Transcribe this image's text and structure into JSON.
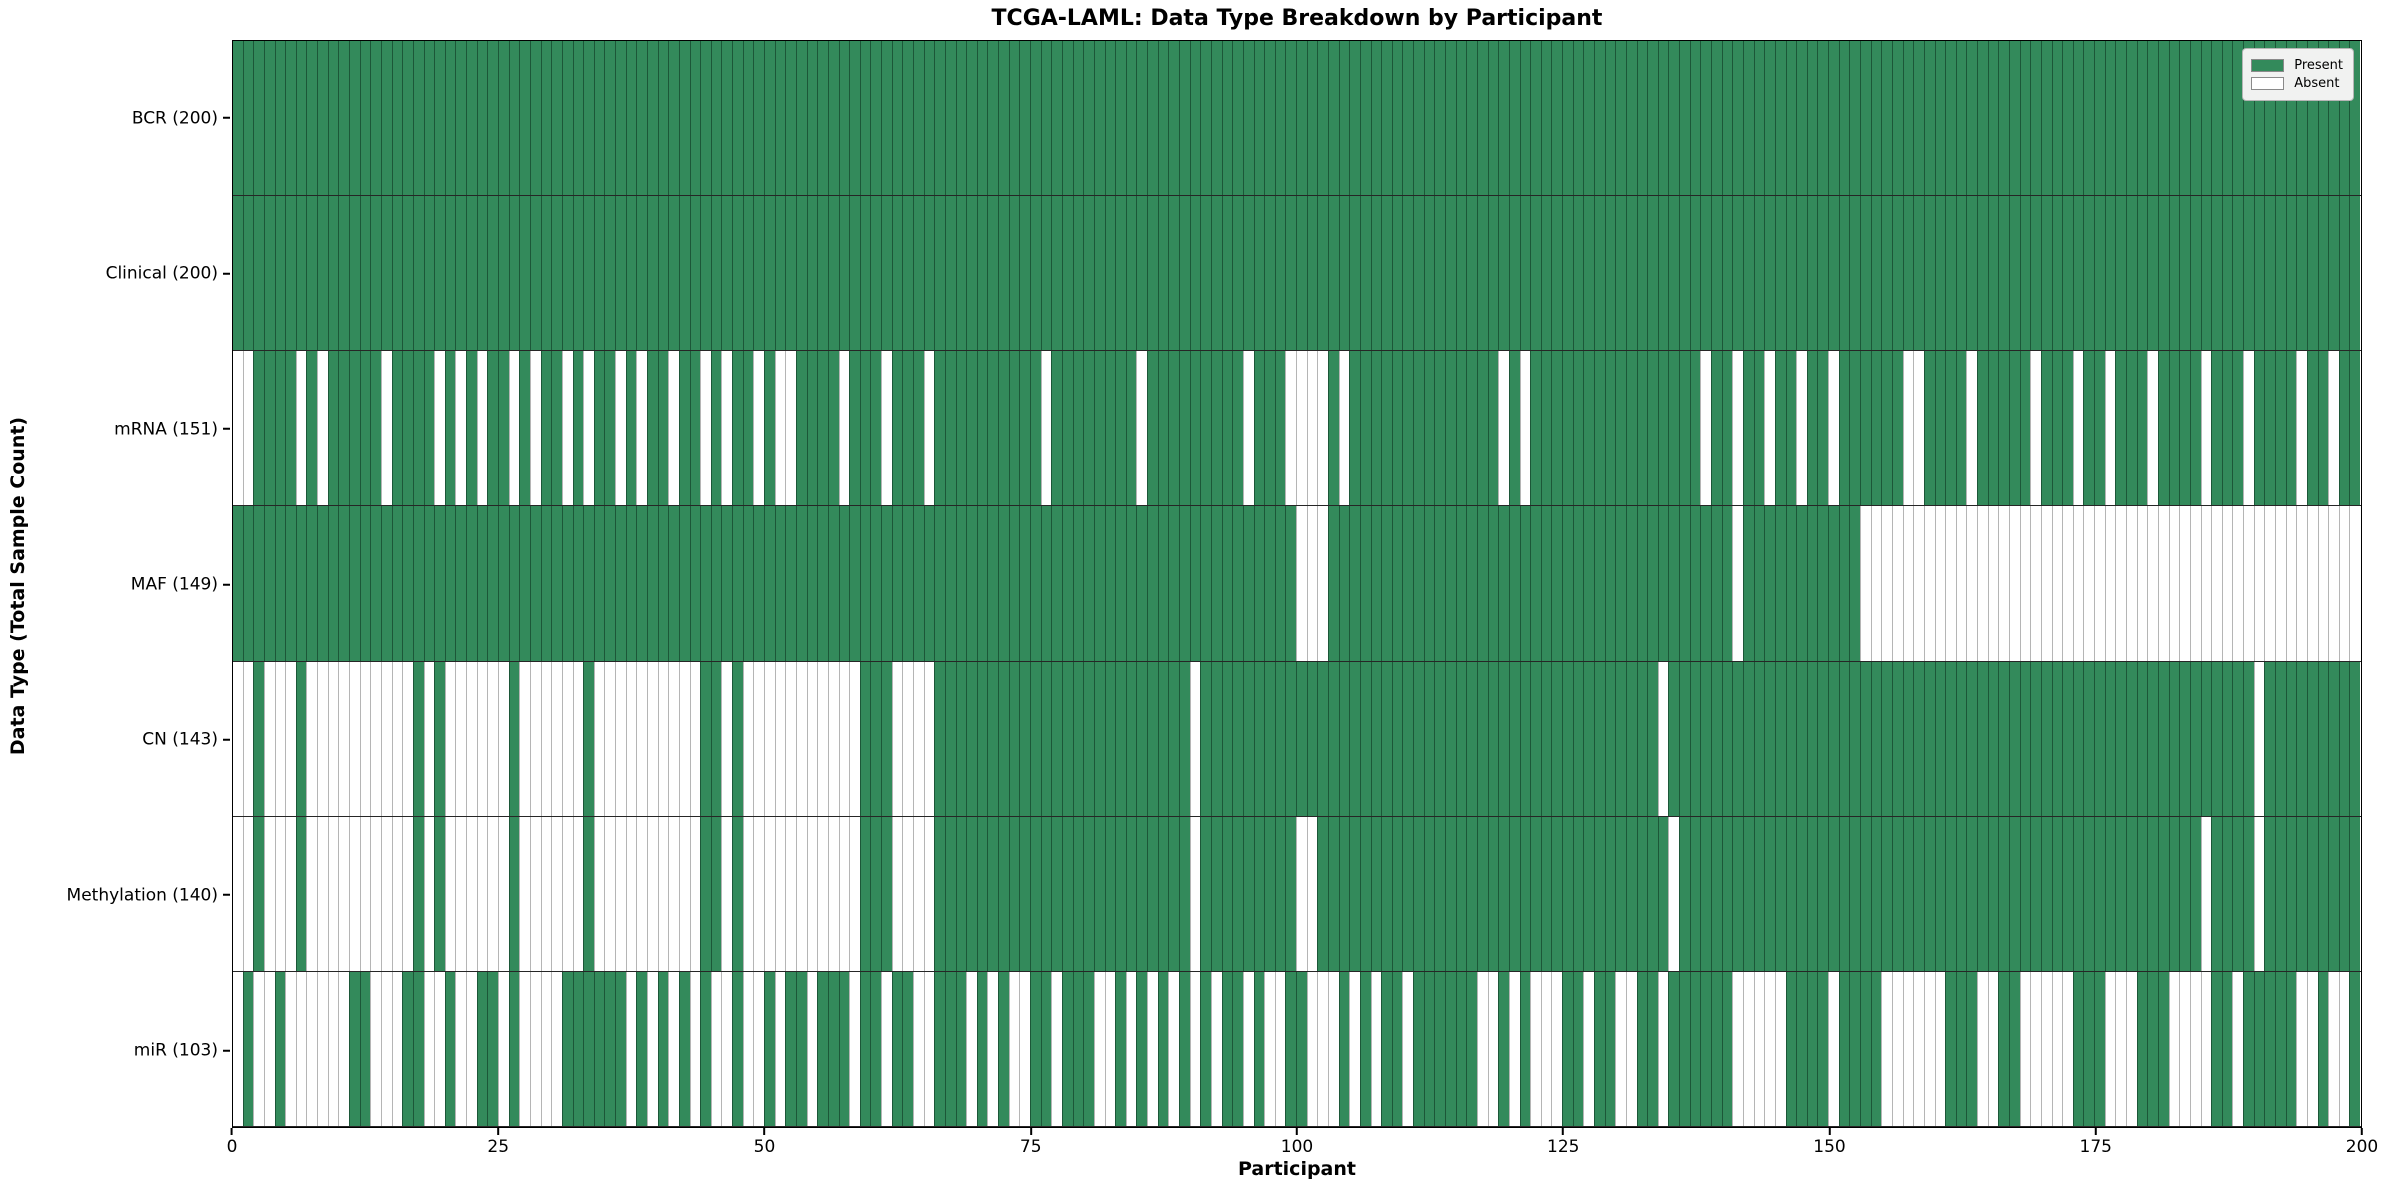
{
  "chart_data": {
    "type": "heatmap",
    "title": "TCGA-LAML: Data Type Breakdown by Participant",
    "xlabel": "Participant",
    "ylabel": "Data Type (Total Sample Count)",
    "n_participants": 200,
    "x_ticks": [
      0,
      25,
      50,
      75,
      100,
      125,
      150,
      175,
      200
    ],
    "colors": {
      "present": "#338a5b",
      "absent": "#ffffff"
    },
    "legend": [
      {
        "label": "Present",
        "color": "#338a5b"
      },
      {
        "label": "Absent",
        "color": "#ffffff"
      }
    ],
    "rows": [
      {
        "label": "BCR (200)",
        "data_type": "BCR",
        "present_count": 200,
        "absent_participants": []
      },
      {
        "label": "Clinical (200)",
        "data_type": "Clinical",
        "present_count": 200,
        "absent_participants": []
      },
      {
        "label": "mRNA (151)",
        "data_type": "mRNA",
        "present_count": 151,
        "absent_participants": [
          0,
          1,
          6,
          8,
          14,
          19,
          21,
          23,
          26,
          28,
          31,
          33,
          36,
          38,
          41,
          44,
          46,
          49,
          51,
          52,
          57,
          61,
          65,
          76,
          85,
          95,
          99,
          100,
          101,
          102,
          104,
          119,
          121,
          138,
          141,
          144,
          147,
          150,
          157,
          158,
          163,
          169,
          173,
          176,
          180,
          185,
          189,
          194,
          197
        ]
      },
      {
        "label": "MAF (149)",
        "data_type": "MAF",
        "present_count": 149,
        "absent_participants": [
          100,
          101,
          102,
          141,
          153,
          154,
          155,
          156,
          157,
          158,
          159,
          160,
          161,
          162,
          163,
          164,
          165,
          166,
          167,
          168,
          169,
          170,
          171,
          172,
          173,
          174,
          175,
          176,
          177,
          178,
          179,
          180,
          181,
          182,
          183,
          184,
          185,
          186,
          187,
          188,
          189,
          190,
          191,
          192,
          193,
          194,
          195,
          196,
          197,
          198,
          199
        ]
      },
      {
        "label": "CN (143)",
        "data_type": "CN",
        "present_count": 143,
        "absent_participants": [
          0,
          1,
          3,
          4,
          5,
          7,
          8,
          9,
          10,
          11,
          12,
          13,
          14,
          15,
          16,
          18,
          20,
          21,
          22,
          23,
          24,
          25,
          27,
          28,
          29,
          30,
          31,
          32,
          34,
          35,
          36,
          37,
          38,
          39,
          40,
          41,
          42,
          43,
          46,
          48,
          49,
          50,
          51,
          52,
          53,
          54,
          55,
          56,
          57,
          58,
          62,
          63,
          64,
          65,
          90,
          134,
          190
        ]
      },
      {
        "label": "Methylation (140)",
        "data_type": "Methylation",
        "present_count": 140,
        "absent_participants": [
          0,
          1,
          3,
          4,
          5,
          7,
          8,
          9,
          10,
          11,
          12,
          13,
          14,
          15,
          16,
          18,
          20,
          21,
          22,
          23,
          24,
          25,
          27,
          28,
          29,
          30,
          31,
          32,
          34,
          35,
          36,
          37,
          38,
          39,
          40,
          41,
          42,
          43,
          46,
          48,
          49,
          50,
          51,
          52,
          53,
          54,
          55,
          56,
          57,
          58,
          62,
          63,
          64,
          65,
          90,
          100,
          101,
          135,
          185,
          190
        ]
      },
      {
        "label": "miR (103)",
        "data_type": "miR",
        "present_count": 103,
        "absent_participants": [
          0,
          2,
          3,
          5,
          6,
          7,
          8,
          9,
          10,
          13,
          14,
          15,
          18,
          19,
          21,
          22,
          25,
          27,
          28,
          29,
          30,
          37,
          39,
          41,
          43,
          45,
          46,
          48,
          49,
          51,
          54,
          58,
          61,
          64,
          65,
          69,
          71,
          73,
          74,
          77,
          81,
          82,
          84,
          86,
          88,
          90,
          92,
          95,
          97,
          98,
          101,
          102,
          103,
          105,
          107,
          110,
          117,
          118,
          120,
          122,
          123,
          124,
          127,
          130,
          131,
          134,
          141,
          142,
          143,
          144,
          145,
          150,
          155,
          156,
          157,
          158,
          159,
          160,
          164,
          165,
          168,
          169,
          170,
          171,
          172,
          176,
          177,
          178,
          182,
          183,
          184,
          185,
          188,
          194,
          195,
          197,
          198
        ]
      }
    ]
  }
}
